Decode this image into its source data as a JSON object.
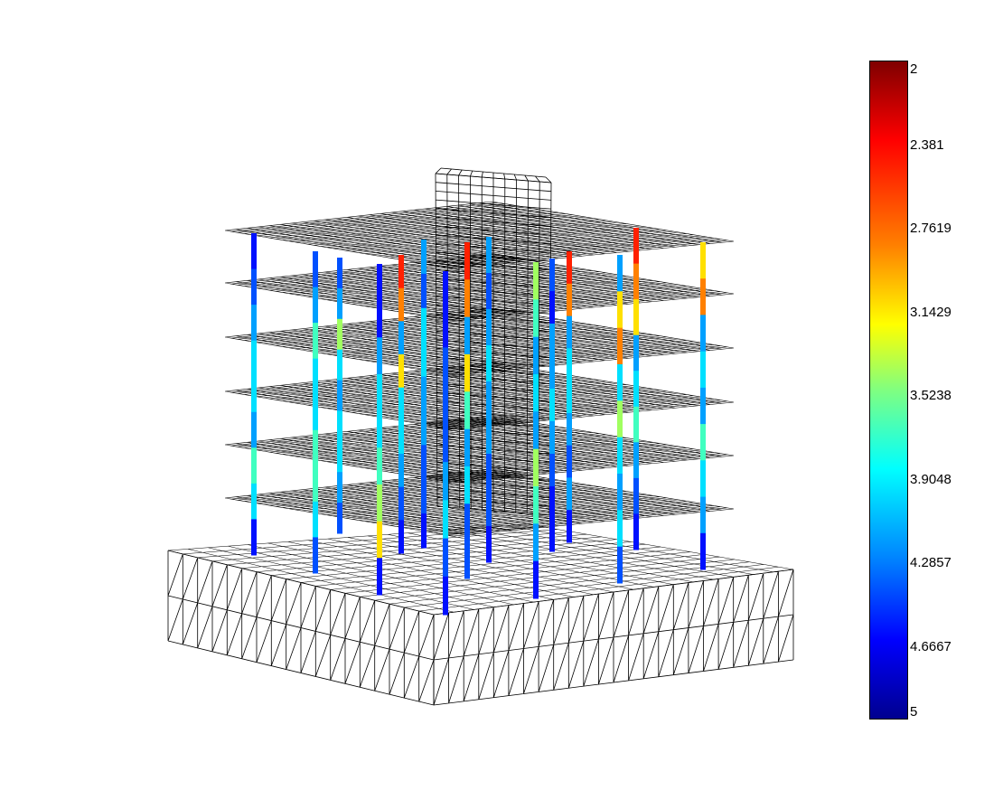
{
  "colorbar": {
    "ticks": [
      {
        "label": "2",
        "value": 2.0
      },
      {
        "label": "2.381",
        "value": 2.381
      },
      {
        "label": "2.7619",
        "value": 2.7619
      },
      {
        "label": "3.1429",
        "value": 3.1429
      },
      {
        "label": "3.5238",
        "value": 3.5238
      },
      {
        "label": "3.9048",
        "value": 3.9048
      },
      {
        "label": "4.2857",
        "value": 4.2857
      },
      {
        "label": "4.6667",
        "value": 4.6667
      },
      {
        "label": "5",
        "value": 5.0
      }
    ],
    "min": 2,
    "max": 5,
    "colormap": "jet",
    "colormap_direction": "high at top (dark red), low at bottom (dark blue)"
  },
  "model": {
    "floors": 6,
    "has_foundation_mat": true,
    "has_core_shaft": true,
    "mesh_color": "#000000"
  }
}
